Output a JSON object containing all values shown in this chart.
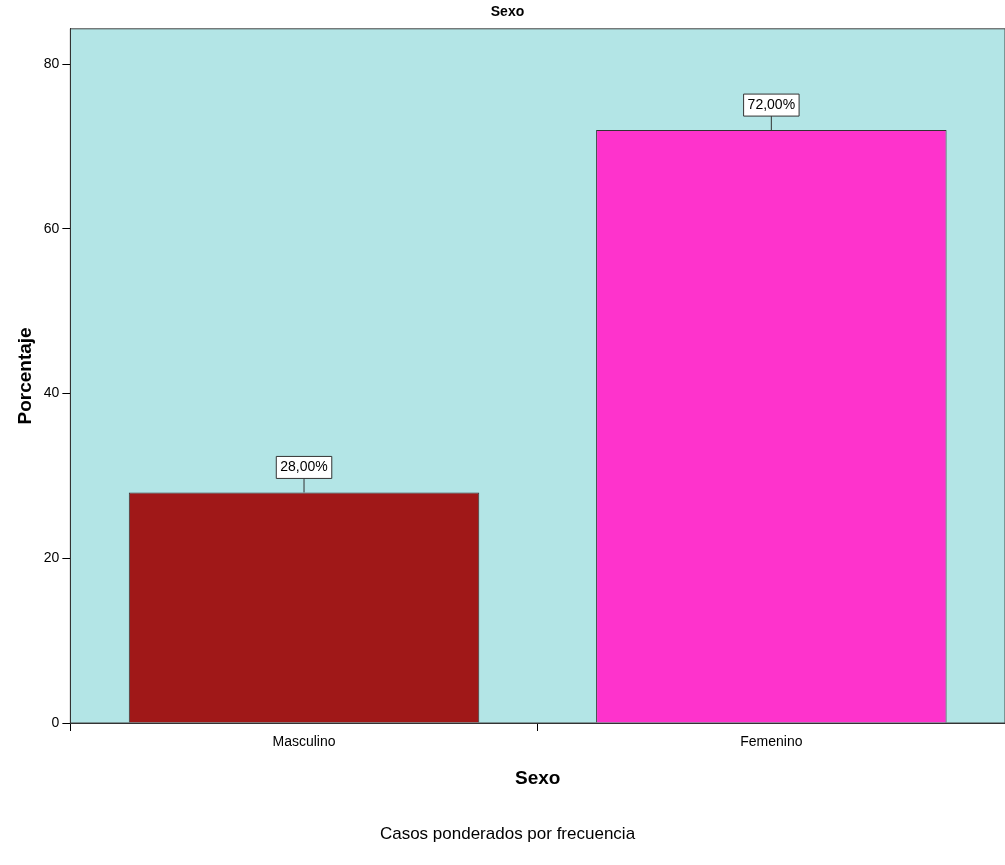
{
  "chart_data": {
    "type": "bar",
    "title": "Sexo",
    "xlabel": "Sexo",
    "ylabel": "Porcentaje",
    "annotations": [
      "Casos ponderados por frecuencia"
    ],
    "categories": [
      "Masculino",
      "Femenino"
    ],
    "values": [
      28,
      72
    ],
    "colors": [
      "#a01818",
      "#fe33cc"
    ],
    "value_labels": [
      "28,00%",
      "72,00%"
    ],
    "ylim": [
      0,
      84.3
    ],
    "yticks": [
      0,
      20,
      40,
      60,
      80
    ],
    "grid": false,
    "legend": false
  }
}
